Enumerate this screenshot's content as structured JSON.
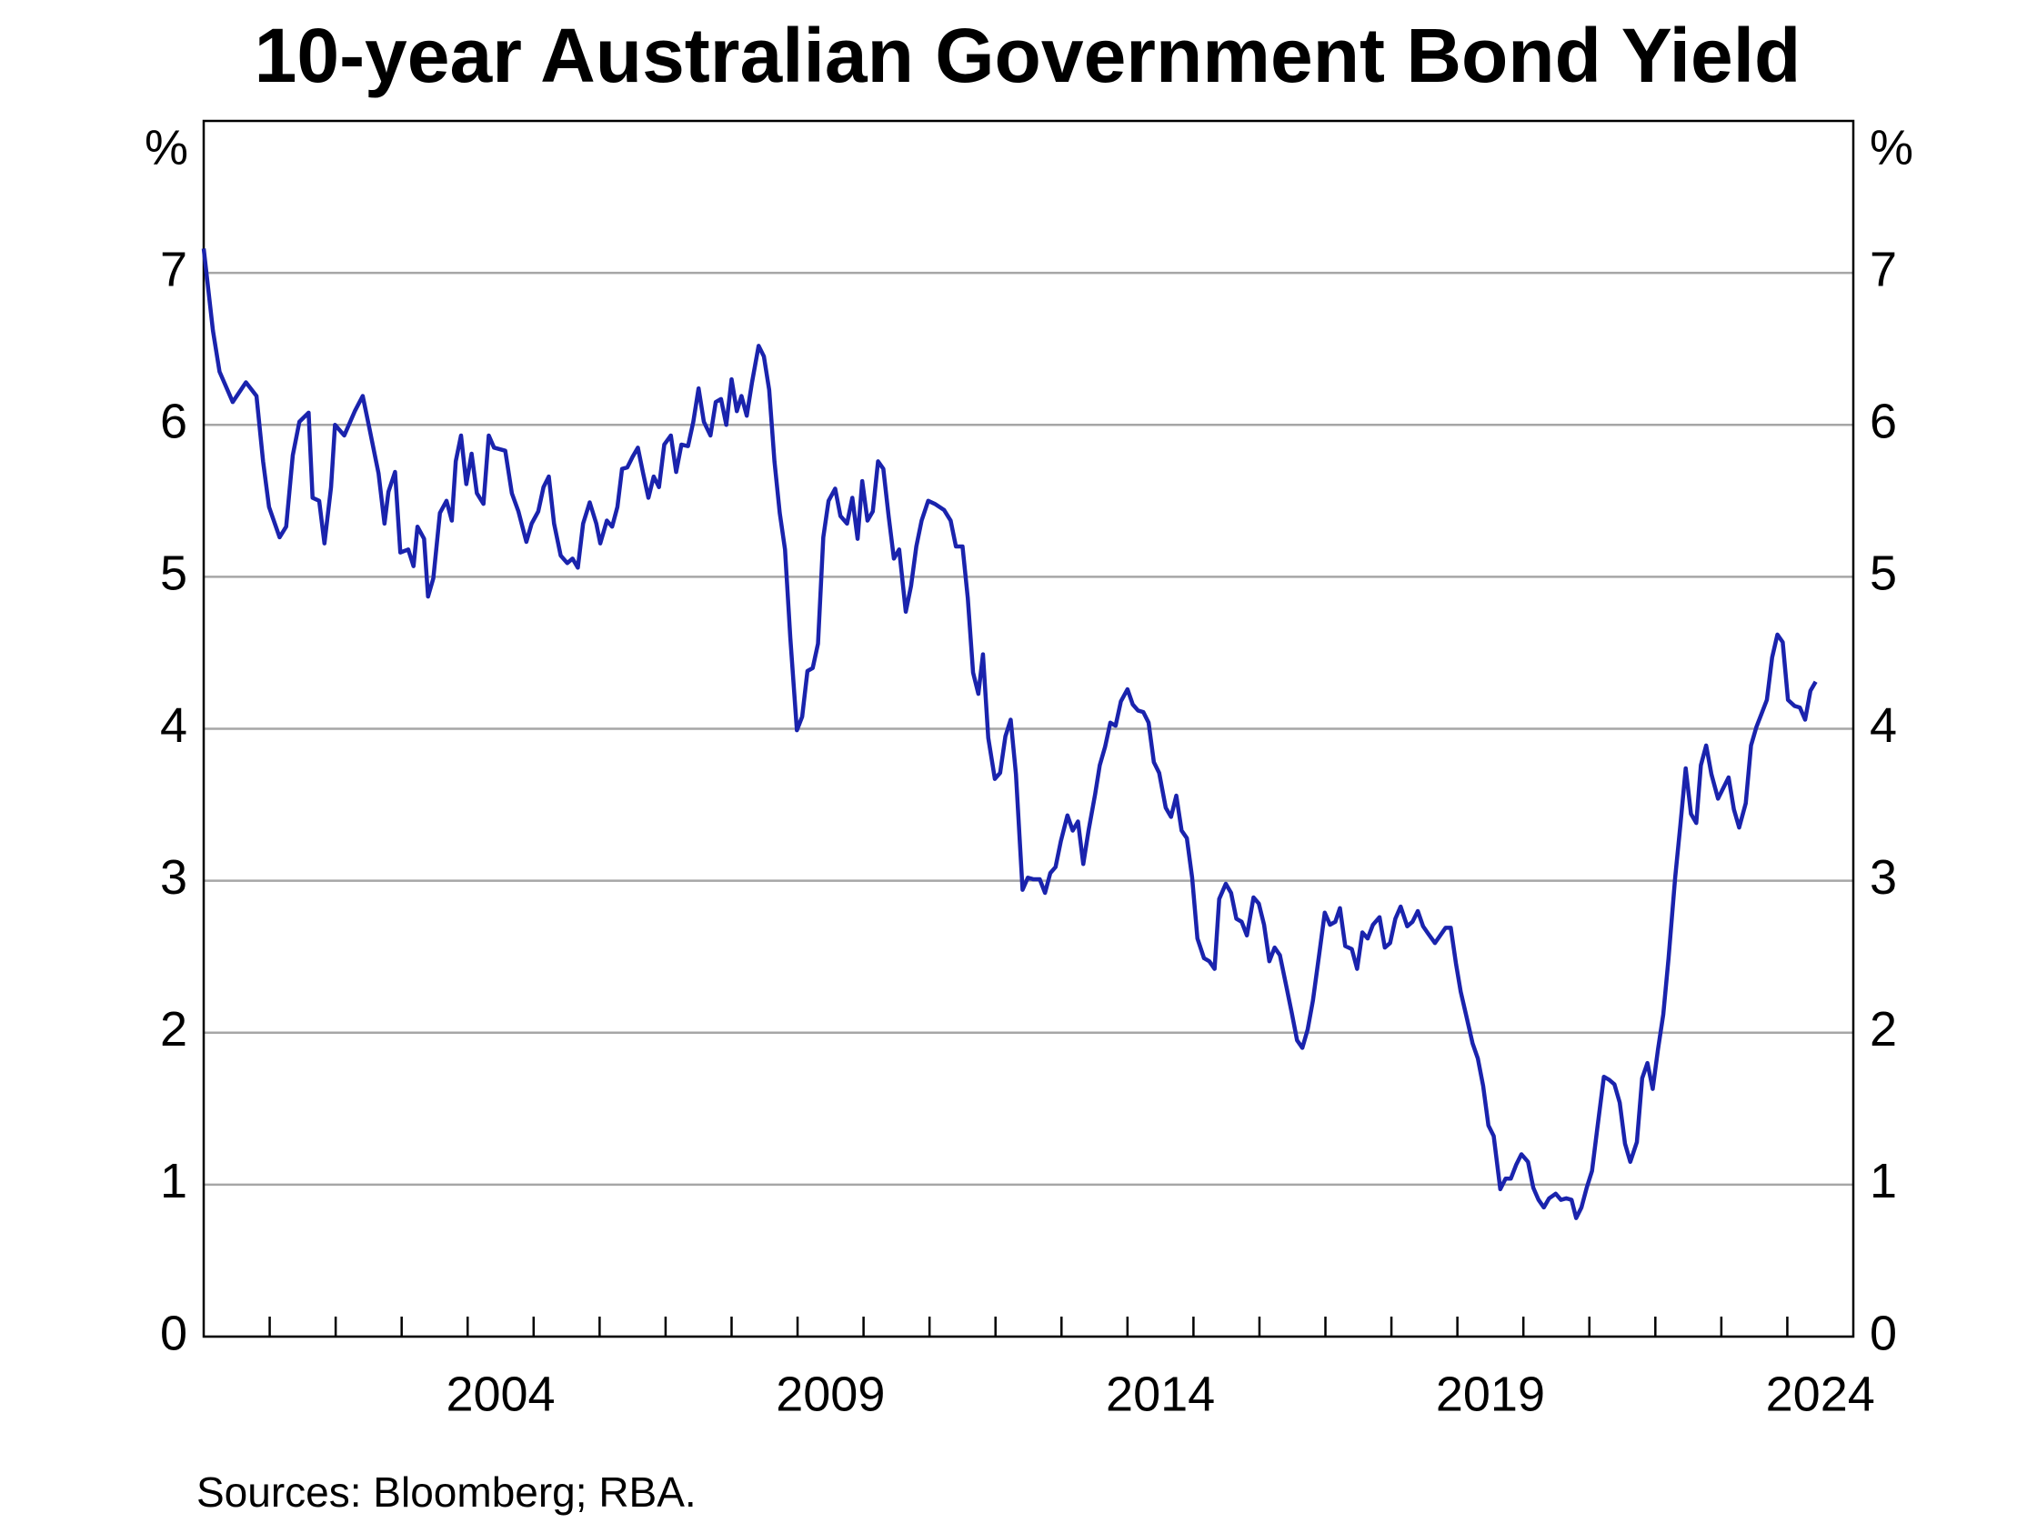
{
  "chart_data": {
    "type": "line",
    "title": "10-year Australian Government Bond Yield",
    "y_unit": "%",
    "source": "Sources: Bloomberg; RBA.",
    "xlim": [
      2000,
      2025
    ],
    "xticks": [
      {
        "value": 2004.5,
        "label": "2004"
      },
      {
        "value": 2009.5,
        "label": "2009"
      },
      {
        "value": 2014.5,
        "label": "2014"
      },
      {
        "value": 2019.5,
        "label": "2019"
      },
      {
        "value": 2024.5,
        "label": "2024"
      }
    ],
    "xminorticks": [
      2001,
      2002,
      2003,
      2004,
      2005,
      2006,
      2007,
      2008,
      2009,
      2010,
      2011,
      2012,
      2013,
      2014,
      2015,
      2016,
      2017,
      2018,
      2019,
      2020,
      2021,
      2022,
      2023,
      2024
    ],
    "ylim": [
      0,
      8
    ],
    "yticks": [
      0,
      1,
      2,
      3,
      4,
      5,
      6,
      7
    ],
    "grid": true,
    "x": [
      2000.0,
      2000.14,
      2000.24,
      2000.44,
      2000.64,
      2000.8,
      2000.9,
      2000.99,
      2001.15,
      2001.25,
      2001.35,
      2001.45,
      2001.59,
      2001.65,
      2001.75,
      2001.83,
      2001.93,
      2001.99,
      2002.13,
      2002.29,
      2002.41,
      2002.51,
      2002.65,
      2002.74,
      2002.8,
      2002.9,
      2002.98,
      2003.1,
      2003.18,
      2003.24,
      2003.34,
      2003.4,
      2003.48,
      2003.58,
      2003.68,
      2003.76,
      2003.82,
      2003.9,
      2003.98,
      2004.06,
      2004.14,
      2004.24,
      2004.32,
      2004.4,
      2004.57,
      2004.67,
      2004.77,
      2004.89,
      2004.97,
      2005.07,
      2005.15,
      2005.23,
      2005.31,
      2005.41,
      2005.51,
      2005.59,
      2005.67,
      2005.75,
      2005.85,
      2005.95,
      2006.01,
      2006.11,
      2006.19,
      2006.27,
      2006.34,
      2006.42,
      2006.5,
      2006.58,
      2006.66,
      2006.74,
      2006.82,
      2006.9,
      2006.98,
      2007.08,
      2007.16,
      2007.24,
      2007.34,
      2007.42,
      2007.5,
      2007.58,
      2007.68,
      2007.76,
      2007.84,
      2007.92,
      2008.0,
      2008.08,
      2008.15,
      2008.23,
      2008.31,
      2008.41,
      2008.49,
      2008.57,
      2008.65,
      2008.73,
      2008.81,
      2008.89,
      2008.99,
      2009.07,
      2009.15,
      2009.23,
      2009.31,
      2009.39,
      2009.47,
      2009.57,
      2009.65,
      2009.75,
      2009.83,
      2009.91,
      2009.98,
      2010.06,
      2010.14,
      2010.22,
      2010.3,
      2010.38,
      2010.46,
      2010.54,
      2010.64,
      2010.72,
      2010.8,
      2010.88,
      2010.98,
      2011.08,
      2011.22,
      2011.32,
      2011.4,
      2011.5,
      2011.58,
      2011.66,
      2011.74,
      2011.81,
      2011.89,
      2011.99,
      2012.07,
      2012.15,
      2012.23,
      2012.31,
      2012.41,
      2012.49,
      2012.57,
      2012.67,
      2012.75,
      2012.83,
      2012.91,
      2012.99,
      2013.09,
      2013.17,
      2013.25,
      2013.33,
      2013.41,
      2013.51,
      2013.58,
      2013.66,
      2013.74,
      2013.82,
      2013.9,
      2014.0,
      2014.08,
      2014.16,
      2014.24,
      2014.32,
      2014.4,
      2014.48,
      2014.58,
      2014.66,
      2014.74,
      2014.82,
      2014.9,
      2014.98,
      2015.06,
      2015.16,
      2015.24,
      2015.32,
      2015.39,
      2015.49,
      2015.57,
      2015.65,
      2015.73,
      2015.81,
      2015.91,
      2015.99,
      2016.07,
      2016.15,
      2016.23,
      2016.31,
      2016.41,
      2016.49,
      2016.57,
      2016.65,
      2016.73,
      2016.81,
      2016.91,
      2016.99,
      2017.07,
      2017.15,
      2017.22,
      2017.3,
      2017.4,
      2017.48,
      2017.56,
      2017.64,
      2017.72,
      2017.82,
      2017.9,
      2017.98,
      2018.06,
      2018.14,
      2018.24,
      2018.32,
      2018.4,
      2018.48,
      2018.56,
      2018.66,
      2018.74,
      2018.82,
      2018.9,
      2018.98,
      2019.05,
      2019.13,
      2019.23,
      2019.31,
      2019.39,
      2019.47,
      2019.55,
      2019.65,
      2019.73,
      2019.81,
      2019.89,
      2019.97,
      2020.07,
      2020.15,
      2020.23,
      2020.31,
      2020.39,
      2020.49,
      2020.57,
      2020.65,
      2020.73,
      2020.8,
      2020.88,
      2020.96,
      2021.04,
      2021.12,
      2021.22,
      2021.3,
      2021.38,
      2021.46,
      2021.54,
      2021.62,
      2021.72,
      2021.8,
      2021.88,
      2021.96,
      2022.04,
      2022.12,
      2022.2,
      2022.3,
      2022.38,
      2022.46,
      2022.54,
      2022.62,
      2022.69,
      2022.77,
      2022.85,
      2022.95,
      2023.03,
      2023.11,
      2023.19,
      2023.27,
      2023.37,
      2023.45,
      2023.53,
      2023.61,
      2023.69,
      2023.77,
      2023.85,
      2023.93,
      2024.01,
      2024.11,
      2024.19,
      2024.27,
      2024.35,
      2024.43
    ],
    "series": [
      {
        "color": "#1a23ad",
        "values": [
          7.16,
          6.62,
          6.35,
          6.15,
          6.28,
          6.19,
          5.76,
          5.46,
          5.26,
          5.33,
          5.8,
          6.02,
          6.08,
          5.52,
          5.5,
          5.22,
          5.59,
          6.0,
          5.93,
          6.09,
          6.19,
          5.98,
          5.68,
          5.35,
          5.56,
          5.69,
          5.16,
          5.18,
          5.07,
          5.33,
          5.25,
          4.87,
          4.99,
          5.42,
          5.5,
          5.37,
          5.76,
          5.93,
          5.61,
          5.81,
          5.55,
          5.48,
          5.93,
          5.85,
          5.83,
          5.55,
          5.43,
          5.23,
          5.35,
          5.43,
          5.59,
          5.66,
          5.35,
          5.14,
          5.09,
          5.12,
          5.06,
          5.35,
          5.49,
          5.35,
          5.22,
          5.37,
          5.33,
          5.46,
          5.71,
          5.72,
          5.79,
          5.85,
          5.68,
          5.52,
          5.66,
          5.59,
          5.87,
          5.93,
          5.69,
          5.87,
          5.86,
          6.02,
          6.24,
          6.02,
          5.93,
          6.15,
          6.17,
          6.0,
          6.3,
          6.09,
          6.19,
          6.06,
          6.28,
          6.52,
          6.45,
          6.23,
          5.76,
          5.42,
          5.18,
          4.6,
          3.99,
          4.08,
          4.38,
          4.4,
          4.56,
          5.26,
          5.5,
          5.58,
          5.4,
          5.35,
          5.52,
          5.25,
          5.63,
          5.37,
          5.43,
          5.76,
          5.71,
          5.4,
          5.12,
          5.18,
          4.77,
          4.94,
          5.2,
          5.37,
          5.5,
          5.48,
          5.44,
          5.37,
          5.2,
          5.2,
          4.86,
          4.37,
          4.23,
          4.49,
          3.94,
          3.67,
          3.71,
          3.95,
          4.06,
          3.7,
          2.94,
          3.02,
          3.01,
          3.01,
          2.92,
          3.05,
          3.09,
          3.26,
          3.43,
          3.33,
          3.39,
          3.11,
          3.33,
          3.57,
          3.76,
          3.88,
          4.04,
          4.02,
          4.18,
          4.26,
          4.16,
          4.12,
          4.11,
          4.04,
          3.78,
          3.71,
          3.48,
          3.42,
          3.56,
          3.33,
          3.28,
          3.02,
          2.62,
          2.49,
          2.47,
          2.42,
          2.88,
          2.98,
          2.92,
          2.75,
          2.73,
          2.64,
          2.89,
          2.85,
          2.71,
          2.47,
          2.56,
          2.51,
          2.3,
          2.13,
          1.95,
          1.9,
          2.02,
          2.21,
          2.53,
          2.79,
          2.71,
          2.73,
          2.82,
          2.57,
          2.55,
          2.42,
          2.66,
          2.62,
          2.71,
          2.76,
          2.56,
          2.59,
          2.75,
          2.83,
          2.7,
          2.73,
          2.8,
          2.7,
          2.65,
          2.59,
          2.64,
          2.69,
          2.69,
          2.45,
          2.27,
          2.12,
          1.93,
          1.83,
          1.65,
          1.39,
          1.32,
          0.97,
          1.04,
          1.04,
          1.13,
          1.2,
          1.15,
          0.98,
          0.9,
          0.85,
          0.91,
          0.94,
          0.9,
          0.91,
          0.9,
          0.78,
          0.85,
          0.98,
          1.09,
          1.37,
          1.71,
          1.69,
          1.66,
          1.54,
          1.27,
          1.15,
          1.28,
          1.7,
          1.8,
          1.63,
          1.89,
          2.12,
          2.49,
          3.02,
          3.37,
          3.74,
          3.44,
          3.38,
          3.76,
          3.89,
          3.7,
          3.54,
          3.61,
          3.68,
          3.47,
          3.35,
          3.51,
          3.89,
          4.01,
          4.1,
          4.19,
          4.47,
          4.62,
          4.57,
          4.19,
          4.15,
          4.14,
          4.06,
          4.25,
          4.31
        ]
      }
    ]
  }
}
